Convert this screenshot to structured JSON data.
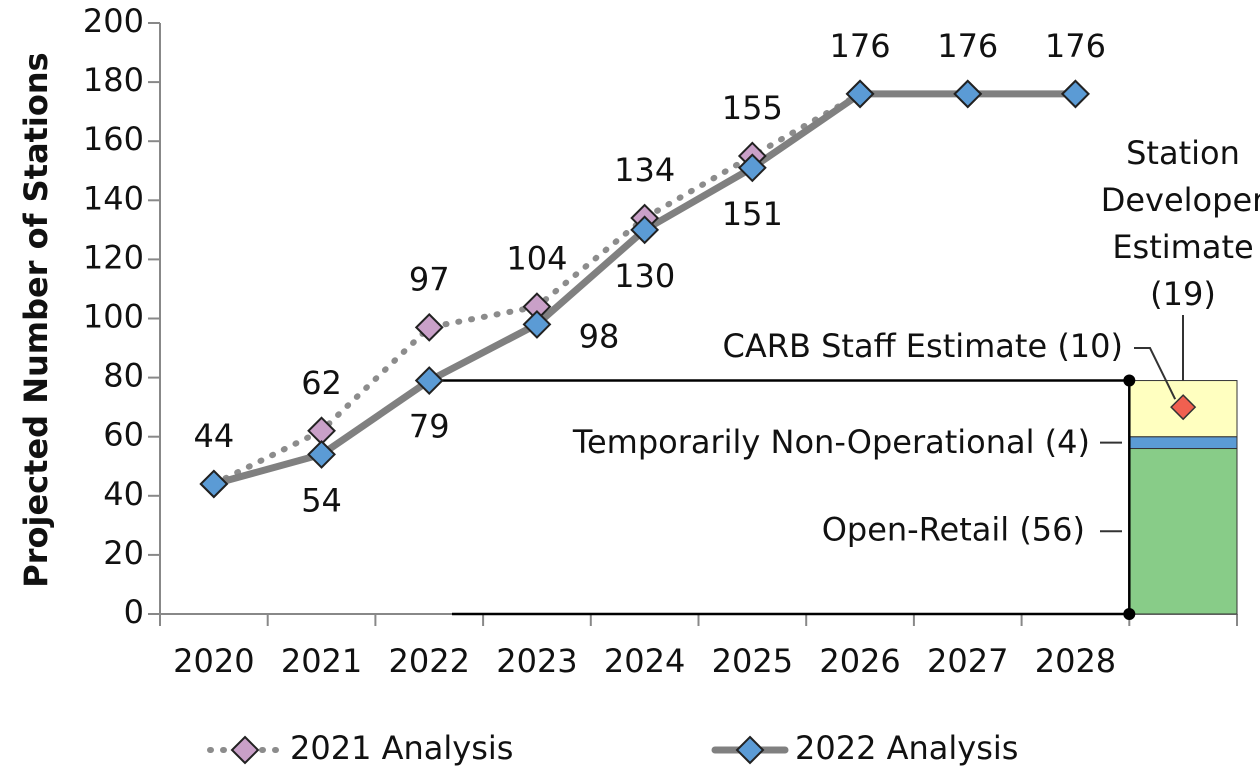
{
  "chart_data": {
    "type": "line",
    "y_label": "Projected Number of  Stations",
    "categories": [
      "2020",
      "2021",
      "2022",
      "2023",
      "2024",
      "2025",
      "2026",
      "2027",
      "2028"
    ],
    "series": [
      {
        "name": "2021 Analysis",
        "color": "#c9a0c8",
        "line_color": "#8c8c8c",
        "style": "dotted",
        "values": [
          44,
          62,
          97,
          104,
          134,
          155,
          176,
          176,
          176
        ],
        "value_labels": [
          null,
          "62",
          "97",
          "104",
          "134",
          "155",
          null,
          null,
          null
        ]
      },
      {
        "name": "2022 Analysis",
        "color": "#5b9bd5",
        "line_color": "#808080",
        "style": "solid",
        "values": [
          44,
          54,
          79,
          98,
          130,
          151,
          176,
          176,
          176
        ],
        "value_labels": [
          "44",
          "54",
          "79",
          "98",
          "130",
          "151",
          "176",
          "176",
          "176"
        ]
      }
    ],
    "stack": {
      "segments": [
        {
          "name": "Open-Retail (56)",
          "value": 56,
          "color": "#88cc88"
        },
        {
          "name": "Temporarily Non-Operational (4)",
          "value": 4,
          "color": "#5b9bd5"
        },
        {
          "name": [
            "Station",
            "Developer",
            "Estimate",
            "(19)"
          ],
          "value": 19,
          "color": "#ffffc0"
        }
      ],
      "marker": {
        "name": "CARB Staff Estimate (10)",
        "value": 10,
        "color": "#f06050"
      }
    },
    "ylim": [
      0,
      200
    ],
    "yticks": [
      0,
      20,
      40,
      60,
      80,
      100,
      120,
      140,
      160,
      180,
      200
    ]
  }
}
